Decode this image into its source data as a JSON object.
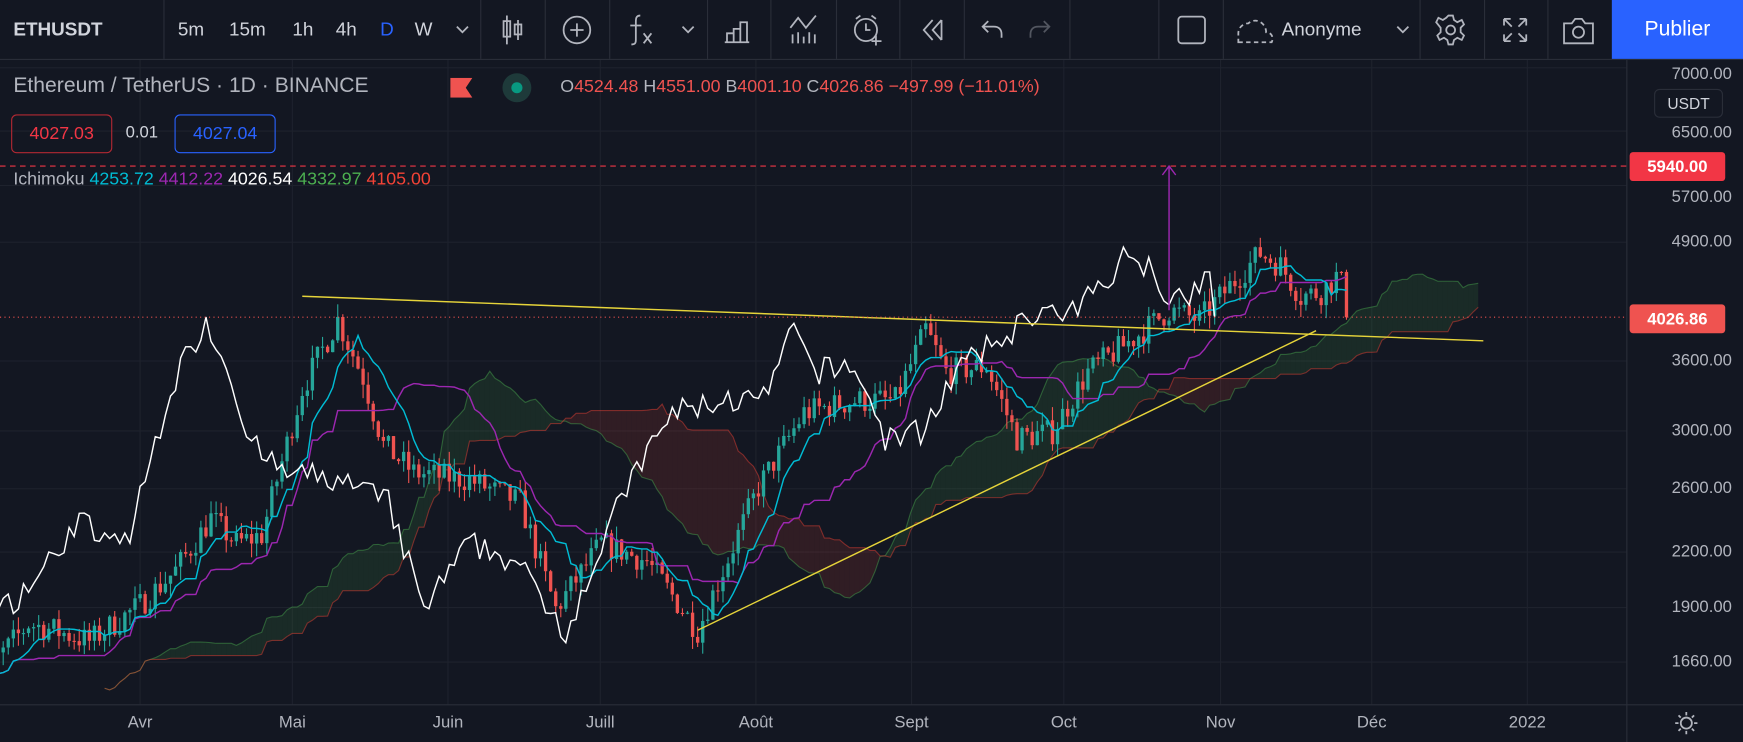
{
  "toolbar": {
    "symbol": "ETHUSDT",
    "intervals": [
      "5m",
      "15m",
      "1h",
      "4h",
      "D",
      "W"
    ],
    "active_interval": "D",
    "user": "Anonyme",
    "publish_label": "Publier",
    "icons": [
      "candles-icon",
      "add-compare-icon",
      "indicators-fx-icon",
      "templates-icon",
      "chart-type-icon",
      "alert-icon",
      "replay-icon",
      "undo-icon",
      "redo-icon",
      "layout-icon",
      "cloud-icon",
      "settings-gear-icon",
      "fullscreen-icon",
      "camera-icon"
    ]
  },
  "legend": {
    "title": "Ethereum / TetherUS · 1D · BINANCE",
    "o_label": "O",
    "open": "4524.48",
    "h_label": "H",
    "high": "4551.00",
    "l_label": "B",
    "low": "4001.10",
    "c_label": "C",
    "close": "4026.86",
    "change": "−497.99 (−11.01%)",
    "bid": "4027.03",
    "spread": "0.01",
    "ask": "4027.04",
    "indicator_name": "Ichimoku",
    "indicator_values": [
      "4253.72",
      "4412.22",
      "4026.54",
      "4332.97",
      "4105.00"
    ]
  },
  "price_axis": {
    "currency": "USDT",
    "ticks": [
      "7000.00",
      "6500.00",
      "5700.00",
      "4900.00",
      "3600.00",
      "3000.00",
      "2600.00",
      "2200.00",
      "1900.00",
      "1660.00"
    ],
    "target_label": "5940.00",
    "last_price_label": "4026.86"
  },
  "time_axis": {
    "labels": [
      "Avr",
      "Mai",
      "Juin",
      "Juill",
      "Août",
      "Sept",
      "Oct",
      "Nov",
      "Déc",
      "2022"
    ]
  },
  "colors": {
    "up": "#26a69a",
    "down": "#ef5350",
    "tenkan": "#00bcd4",
    "kijun": "#9c27b0",
    "chikou": "#ffffff",
    "span_a": "#4caf50",
    "span_b": "#f44336",
    "trendline": "#e6d43a",
    "accent": "#2962ff"
  },
  "chart_data": {
    "type": "candlestick",
    "symbol": "ETHUSDT",
    "scale": "log",
    "ylim": [
      1500,
      7200
    ],
    "indicator": "Ichimoku",
    "close_path": [
      [
        "2021-02-27",
        1560
      ],
      [
        "2021-03-05",
        1700
      ],
      [
        "2021-03-10",
        1830
      ],
      [
        "2021-03-15",
        1800
      ],
      [
        "2021-03-22",
        1750
      ],
      [
        "2021-04-01",
        1920
      ],
      [
        "2021-04-08",
        2100
      ],
      [
        "2021-04-15",
        2400
      ],
      [
        "2021-04-20",
        2250
      ],
      [
        "2021-04-25",
        2300
      ],
      [
        "2021-05-03",
        3350
      ],
      [
        "2021-05-10",
        4000
      ],
      [
        "2021-05-15",
        3450
      ],
      [
        "2021-05-19",
        2900
      ],
      [
        "2021-05-25",
        2700
      ],
      [
        "2021-06-05",
        2650
      ],
      [
        "2021-06-15",
        2500
      ],
      [
        "2021-06-22",
        1900
      ],
      [
        "2021-07-01",
        2250
      ],
      [
        "2021-07-10",
        2150
      ],
      [
        "2021-07-20",
        1800
      ],
      [
        "2021-07-25",
        2100
      ],
      [
        "2021-08-01",
        2600
      ],
      [
        "2021-08-10",
        3150
      ],
      [
        "2021-08-20",
        3250
      ],
      [
        "2021-08-28",
        3250
      ],
      [
        "2021-09-03",
        3900
      ],
      [
        "2021-09-07",
        3500
      ],
      [
        "2021-09-15",
        3550
      ],
      [
        "2021-09-21",
        2950
      ],
      [
        "2021-09-28",
        3000
      ],
      [
        "2021-10-05",
        3500
      ],
      [
        "2021-10-15",
        3850
      ],
      [
        "2021-10-21",
        4100
      ],
      [
        "2021-10-27",
        4000
      ],
      [
        "2021-11-01",
        4300
      ],
      [
        "2021-11-08",
        4750
      ],
      [
        "2021-11-12",
        4600
      ],
      [
        "2021-11-16",
        4250
      ],
      [
        "2021-11-20",
        4300
      ],
      [
        "2021-11-24",
        4524.48
      ]
    ],
    "last_candle": {
      "open": 4524.48,
      "high": 4551.0,
      "low": 4001.1,
      "close": 4026.86
    },
    "drawings": {
      "descending_trendline": [
        [
          "2021-05-03",
          4250
        ],
        [
          "2021-12-22",
          3790
        ]
      ],
      "ascending_trendline": [
        [
          "2021-07-20",
          1800
        ],
        [
          "2021-11-19",
          3890
        ]
      ],
      "target_arrow": {
        "date": "2021-10-21",
        "from": 4100,
        "to": 5940
      },
      "target_level": 5940
    }
  }
}
